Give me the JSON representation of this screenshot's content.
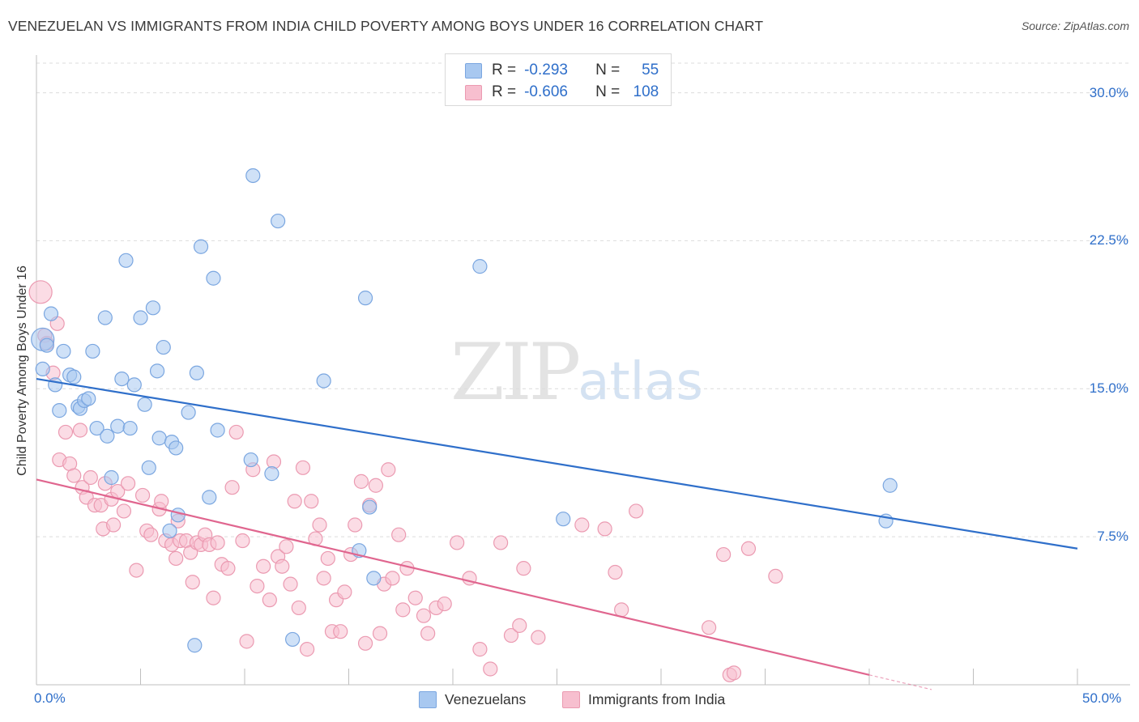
{
  "header": {
    "title": "VENEZUELAN VS IMMIGRANTS FROM INDIA CHILD POVERTY AMONG BOYS UNDER 16 CORRELATION CHART",
    "source": "Source: ZipAtlas.com"
  },
  "watermark": {
    "zip": "ZIP",
    "atlas": "atlas"
  },
  "legend": {
    "venezuelans": {
      "r_label": "R =",
      "r_value": "-0.293",
      "n_label": "N =",
      "n_value": "55"
    },
    "india": {
      "r_label": "R =",
      "r_value": "-0.606",
      "n_label": "N =",
      "n_value": "108"
    }
  },
  "colors": {
    "blue_fill": "#a8c8f0",
    "blue_stroke": "#7aa6e0",
    "blue_line": "#2f6fca",
    "pink_fill": "#f7bfcf",
    "pink_stroke": "#eb9ab1",
    "pink_line": "#e0668f",
    "grid": "#dcdcdc",
    "axis_text": "#2f6fca"
  },
  "chart_data": {
    "type": "scatter",
    "title": "VENEZUELAN VS IMMIGRANTS FROM INDIA CHILD POVERTY AMONG BOYS UNDER 16 CORRELATION CHART",
    "xlabel": "",
    "ylabel": "Child Poverty Among Boys Under 16",
    "xlim": [
      0,
      50
    ],
    "ylim": [
      0,
      31.5
    ],
    "x_tick_labels": [
      "0.0%",
      "50.0%"
    ],
    "y_ticks": [
      7.5,
      15.0,
      22.5,
      30.0
    ],
    "y_tick_labels": [
      "7.5%",
      "15.0%",
      "22.5%",
      "30.0%"
    ],
    "series": [
      {
        "name": "Venezuelans",
        "color": "blue",
        "trend": {
          "x": [
            0,
            50
          ],
          "y": [
            15.5,
            6.9
          ]
        },
        "points": [
          [
            0.3,
            17.5
          ],
          [
            0.3,
            16.0
          ],
          [
            0.5,
            17.2
          ],
          [
            0.7,
            18.8
          ],
          [
            0.9,
            15.2
          ],
          [
            1.1,
            13.9
          ],
          [
            1.3,
            16.9
          ],
          [
            1.6,
            15.7
          ],
          [
            1.8,
            15.6
          ],
          [
            2.0,
            14.1
          ],
          [
            2.1,
            14.0
          ],
          [
            2.3,
            14.4
          ],
          [
            2.5,
            14.5
          ],
          [
            2.7,
            16.9
          ],
          [
            2.9,
            13.0
          ],
          [
            3.3,
            18.6
          ],
          [
            3.4,
            12.6
          ],
          [
            3.6,
            10.5
          ],
          [
            3.9,
            13.1
          ],
          [
            4.1,
            15.5
          ],
          [
            4.3,
            21.5
          ],
          [
            4.5,
            13.0
          ],
          [
            4.7,
            15.2
          ],
          [
            5.0,
            18.6
          ],
          [
            5.2,
            14.2
          ],
          [
            5.4,
            11.0
          ],
          [
            5.6,
            19.1
          ],
          [
            5.8,
            15.9
          ],
          [
            5.9,
            12.5
          ],
          [
            6.1,
            17.1
          ],
          [
            6.4,
            7.8
          ],
          [
            6.5,
            12.3
          ],
          [
            6.7,
            12.0
          ],
          [
            6.8,
            8.6
          ],
          [
            7.3,
            13.8
          ],
          [
            7.6,
            2.0
          ],
          [
            7.7,
            15.8
          ],
          [
            7.9,
            22.2
          ],
          [
            8.3,
            9.5
          ],
          [
            8.5,
            20.6
          ],
          [
            8.7,
            12.9
          ],
          [
            10.4,
            25.8
          ],
          [
            10.3,
            11.4
          ],
          [
            11.3,
            10.7
          ],
          [
            11.6,
            23.5
          ],
          [
            12.3,
            2.3
          ],
          [
            13.8,
            15.4
          ],
          [
            15.5,
            6.8
          ],
          [
            15.8,
            19.6
          ],
          [
            16.0,
            9.0
          ],
          [
            16.2,
            5.4
          ],
          [
            21.3,
            21.2
          ],
          [
            25.3,
            8.4
          ],
          [
            41.0,
            10.1
          ],
          [
            40.8,
            8.3
          ]
        ]
      },
      {
        "name": "Immigrants from India",
        "color": "pink",
        "trend": {
          "x": [
            0,
            40
          ],
          "y": [
            10.4,
            0.5
          ]
        },
        "points": [
          [
            0.2,
            19.9
          ],
          [
            0.4,
            17.7
          ],
          [
            0.5,
            17.3
          ],
          [
            0.8,
            15.8
          ],
          [
            1.0,
            18.3
          ],
          [
            1.1,
            11.4
          ],
          [
            1.4,
            12.8
          ],
          [
            1.6,
            11.2
          ],
          [
            1.8,
            10.6
          ],
          [
            2.1,
            12.9
          ],
          [
            2.2,
            10.0
          ],
          [
            2.4,
            9.5
          ],
          [
            2.6,
            10.5
          ],
          [
            2.8,
            9.1
          ],
          [
            3.1,
            9.1
          ],
          [
            3.2,
            7.9
          ],
          [
            3.3,
            10.2
          ],
          [
            3.6,
            9.4
          ],
          [
            3.7,
            8.1
          ],
          [
            3.9,
            9.8
          ],
          [
            4.2,
            8.8
          ],
          [
            4.4,
            10.2
          ],
          [
            4.8,
            5.8
          ],
          [
            5.1,
            9.6
          ],
          [
            5.3,
            7.8
          ],
          [
            5.5,
            7.6
          ],
          [
            5.9,
            8.9
          ],
          [
            6.0,
            9.3
          ],
          [
            6.2,
            7.3
          ],
          [
            6.5,
            7.1
          ],
          [
            6.7,
            6.4
          ],
          [
            6.8,
            8.3
          ],
          [
            6.9,
            7.3
          ],
          [
            7.2,
            7.3
          ],
          [
            7.4,
            6.7
          ],
          [
            7.5,
            5.2
          ],
          [
            7.7,
            7.2
          ],
          [
            7.9,
            7.1
          ],
          [
            8.1,
            7.6
          ],
          [
            8.3,
            7.1
          ],
          [
            8.5,
            4.4
          ],
          [
            8.7,
            7.2
          ],
          [
            8.9,
            6.1
          ],
          [
            9.2,
            5.9
          ],
          [
            9.4,
            10.0
          ],
          [
            9.6,
            12.8
          ],
          [
            9.9,
            7.3
          ],
          [
            10.1,
            2.2
          ],
          [
            10.4,
            10.9
          ],
          [
            10.6,
            5.0
          ],
          [
            10.9,
            6.0
          ],
          [
            11.2,
            4.3
          ],
          [
            11.4,
            11.3
          ],
          [
            11.6,
            6.5
          ],
          [
            11.8,
            6.0
          ],
          [
            12.0,
            7.0
          ],
          [
            12.2,
            5.1
          ],
          [
            12.4,
            9.3
          ],
          [
            12.6,
            3.9
          ],
          [
            12.8,
            11.0
          ],
          [
            13.0,
            1.8
          ],
          [
            13.2,
            9.3
          ],
          [
            13.4,
            7.4
          ],
          [
            13.6,
            8.1
          ],
          [
            13.8,
            5.4
          ],
          [
            14.0,
            6.4
          ],
          [
            14.2,
            2.7
          ],
          [
            14.4,
            4.3
          ],
          [
            14.6,
            2.7
          ],
          [
            14.8,
            4.7
          ],
          [
            15.1,
            6.6
          ],
          [
            15.3,
            8.1
          ],
          [
            15.6,
            10.3
          ],
          [
            15.8,
            2.1
          ],
          [
            16.0,
            9.1
          ],
          [
            16.3,
            10.1
          ],
          [
            16.5,
            2.6
          ],
          [
            16.7,
            5.1
          ],
          [
            16.9,
            10.9
          ],
          [
            17.1,
            5.4
          ],
          [
            17.4,
            7.6
          ],
          [
            17.6,
            3.8
          ],
          [
            17.8,
            5.9
          ],
          [
            18.2,
            4.4
          ],
          [
            18.6,
            3.5
          ],
          [
            18.8,
            2.6
          ],
          [
            19.2,
            3.9
          ],
          [
            19.6,
            4.1
          ],
          [
            20.2,
            7.2
          ],
          [
            20.8,
            5.4
          ],
          [
            21.3,
            1.8
          ],
          [
            21.8,
            0.8
          ],
          [
            22.3,
            7.2
          ],
          [
            22.8,
            2.5
          ],
          [
            23.2,
            3.0
          ],
          [
            23.4,
            5.9
          ],
          [
            24.1,
            2.4
          ],
          [
            26.2,
            8.1
          ],
          [
            27.3,
            7.9
          ],
          [
            27.8,
            5.7
          ],
          [
            28.1,
            3.8
          ],
          [
            28.8,
            8.8
          ],
          [
            32.3,
            2.9
          ],
          [
            33.0,
            6.6
          ],
          [
            33.3,
            0.5
          ],
          [
            33.5,
            0.6
          ],
          [
            34.2,
            6.9
          ],
          [
            35.5,
            5.5
          ]
        ]
      }
    ]
  },
  "bottom_legend": {
    "venezuelans_label": "Venezuelans",
    "india_label": "Immigrants from India"
  }
}
